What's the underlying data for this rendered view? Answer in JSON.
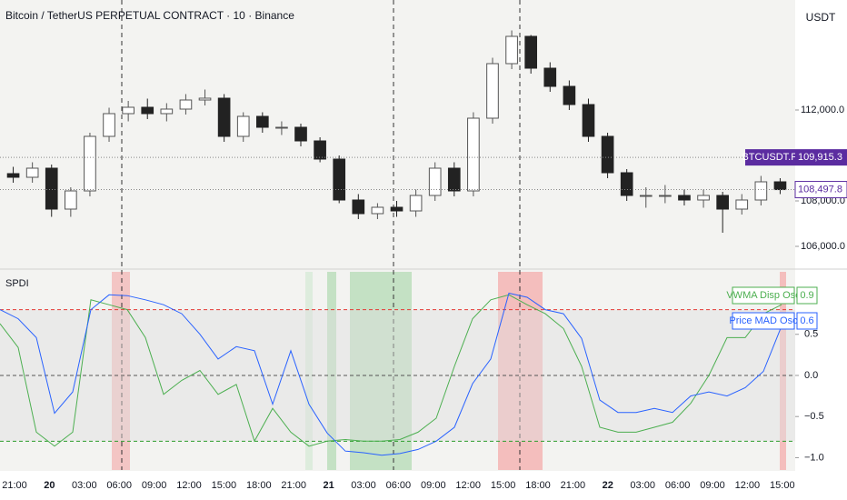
{
  "chart_data": [
    {
      "type": "candlestick",
      "title": "Bitcoin / TetherUS PERPETUAL CONTRACT · 10 · Binance",
      "currency": "USDT",
      "ylim": [
        105040,
        116840
      ],
      "yticks": [
        {
          "value": 106000,
          "label": "106,000.0"
        },
        {
          "value": 108000,
          "label": "108,000.0"
        },
        {
          "value": 112000,
          "label": "112,000.0"
        }
      ],
      "open": [
        109200,
        109040,
        109440,
        107640,
        108440,
        110840,
        111840,
        112120,
        111840,
        112040,
        112440,
        112520,
        110840,
        111720,
        111240,
        111240,
        110640,
        109840,
        108040,
        107440,
        107720,
        107560,
        108240,
        109440,
        108440,
        111640,
        114040,
        115240,
        113840,
        113040,
        112240,
        110840,
        109240,
        108240,
        108240,
        108240,
        108040,
        108240,
        107640,
        108040,
        108840
      ],
      "high": [
        109500,
        109700,
        109600,
        108600,
        111000,
        112100,
        112400,
        112500,
        112300,
        112700,
        112900,
        112700,
        111900,
        111900,
        111500,
        111400,
        110800,
        110000,
        108300,
        107900,
        108000,
        108500,
        109700,
        109700,
        111900,
        114300,
        115500,
        115300,
        114100,
        113300,
        112500,
        111000,
        109400,
        108600,
        108700,
        108500,
        108500,
        108400,
        108300,
        109100,
        109000
      ],
      "low": [
        108800,
        108800,
        107300,
        107300,
        108200,
        110600,
        111500,
        111600,
        111500,
        111800,
        112200,
        110600,
        110600,
        111000,
        110900,
        110400,
        109700,
        107900,
        107200,
        107200,
        107300,
        107300,
        108000,
        108200,
        108200,
        111400,
        113800,
        113600,
        112800,
        112000,
        110600,
        109000,
        108000,
        107700,
        107900,
        107800,
        107700,
        106600,
        107400,
        107800,
        108300
      ],
      "close": [
        109040,
        109440,
        107640,
        108440,
        110840,
        111840,
        112120,
        111840,
        112040,
        112440,
        112520,
        110840,
        111720,
        111240,
        111240,
        110640,
        109840,
        108040,
        107440,
        107720,
        107560,
        108240,
        109440,
        108440,
        111640,
        114040,
        115240,
        113840,
        113040,
        112240,
        110840,
        109240,
        108240,
        108240,
        108240,
        108040,
        108240,
        107640,
        108040,
        108840,
        108497.8
      ],
      "up_color": "#555555",
      "down_color": "#222222",
      "price_labels": [
        {
          "name": "BTCUSDT.P",
          "value": 109915.3,
          "label": "109,915.3",
          "color": "#5b2ca0"
        },
        {
          "value": 108497.8,
          "label": "108,497.8",
          "color": "#5b2ca0"
        }
      ]
    },
    {
      "type": "line",
      "title": "SPDI",
      "ylim": [
        -1.15,
        1.26
      ],
      "yticks": [
        0.5,
        {
          "value": 0,
          "label": "0.0"
        },
        {
          "value": -0.5,
          "label": "−0.5"
        },
        {
          "value": -1,
          "label": "−1.0"
        }
      ],
      "levels": [
        {
          "value": 0.8,
          "color": "#e53935"
        },
        {
          "value": 0,
          "color": "#555555"
        },
        {
          "value": -0.8,
          "color": "#2e9e2e"
        }
      ],
      "xtick_labels": [
        "21:00",
        "20",
        "03:00",
        "06:00",
        "09:00",
        "12:00",
        "15:00",
        "18:00",
        "21:00",
        "21",
        "03:00",
        "06:00",
        "09:00",
        "12:00",
        "15:00",
        "18:00",
        "21:00",
        "22",
        "03:00",
        "06:00",
        "09:00",
        "12:00",
        "15:00"
      ],
      "series": [
        {
          "name": "VWMA Disp Osc",
          "color": "#4caf50",
          "value_label": "0.9",
          "values": [
            0.63,
            0.34,
            -0.69,
            -0.86,
            -0.69,
            0.92,
            0.86,
            0.8,
            0.46,
            -0.23,
            -0.06,
            0.06,
            -0.23,
            -0.11,
            -0.8,
            -0.4,
            -0.69,
            -0.86,
            -0.8,
            -0.78,
            -0.8,
            -0.8,
            -0.78,
            -0.69,
            -0.52,
            0.11,
            0.69,
            0.92,
            0.98,
            0.86,
            0.75,
            0.57,
            0.11,
            -0.63,
            -0.69,
            -0.69,
            -0.63,
            -0.57,
            -0.34,
            0,
            0.46,
            0.46,
            0.75,
            0.86
          ]
        },
        {
          "name": "Price MAD Osc",
          "color": "#2962ff",
          "value_label": "0.6",
          "values": [
            0.8,
            0.69,
            0.46,
            -0.46,
            -0.2,
            0.8,
            0.98,
            0.97,
            0.92,
            0.86,
            0.75,
            0.5,
            0.2,
            0.35,
            0.3,
            -0.35,
            0.3,
            -0.35,
            -0.7,
            -0.92,
            -0.94,
            -0.97,
            -0.95,
            -0.9,
            -0.8,
            -0.63,
            -0.1,
            0.2,
            1.0,
            0.95,
            0.8,
            0.75,
            0.45,
            -0.3,
            -0.45,
            -0.45,
            -0.4,
            -0.45,
            -0.25,
            -0.2,
            -0.25,
            -0.15,
            0.05,
            0.6
          ]
        }
      ]
    }
  ]
}
